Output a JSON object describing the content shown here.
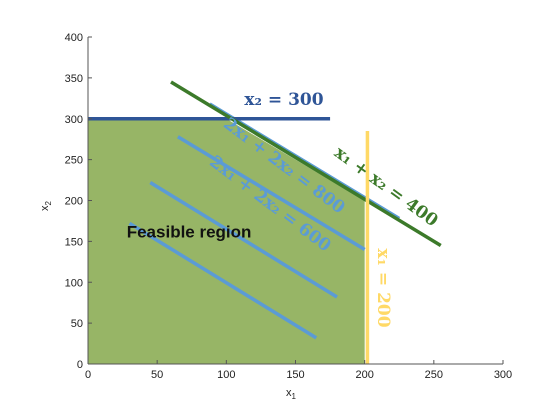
{
  "chart_data": {
    "type": "line",
    "xlabel": "x",
    "xlabel_sub": "1",
    "ylabel": "x",
    "ylabel_sub": "2",
    "xlim": [
      0,
      300
    ],
    "ylim": [
      0,
      400
    ],
    "xticks": [
      0,
      50,
      100,
      150,
      200,
      250,
      300
    ],
    "yticks": [
      0,
      50,
      100,
      150,
      200,
      250,
      300,
      350,
      400
    ],
    "grid": false,
    "colors": {
      "feasible": "#97b566",
      "x2_constraint": "#2f5597",
      "sum_constraint": "#3c7a2a",
      "x1_constraint": "#ffd966",
      "iso_lines": "#5b9bd5",
      "iso_text": "#5b9bd5"
    },
    "feasible_region": {
      "label": "Feasible region",
      "polygon": [
        [
          0,
          0
        ],
        [
          200,
          0
        ],
        [
          200,
          200
        ],
        [
          100,
          300
        ],
        [
          0,
          300
        ]
      ]
    },
    "constraints": [
      {
        "id": "x2",
        "label": "x₂ = 300",
        "color": "#2f5597",
        "points": [
          [
            0,
            300
          ],
          [
            175,
            300
          ]
        ]
      },
      {
        "id": "sum",
        "label": "x₁ + x₂ = 400",
        "color": "#3c7a2a",
        "points": [
          [
            60,
            345
          ],
          [
            255,
            145
          ]
        ]
      },
      {
        "id": "x1",
        "label": "x₁ = 200",
        "color": "#ffd966",
        "points": [
          [
            202,
            0
          ],
          [
            202,
            285
          ]
        ]
      }
    ],
    "iso_lines": [
      {
        "label": "",
        "points": [
          [
            30,
            172
          ],
          [
            165,
            32
          ]
        ]
      },
      {
        "label": "2x₁ + 2x₂ = 600",
        "points": [
          [
            45,
            222
          ],
          [
            180,
            82
          ]
        ]
      },
      {
        "label": "2x₁ + 2x₂ = 800",
        "points": [
          [
            65,
            278
          ],
          [
            200,
            140
          ]
        ]
      },
      {
        "label": "",
        "points": [
          [
            88,
            318
          ],
          [
            225,
            178
          ]
        ]
      }
    ]
  }
}
